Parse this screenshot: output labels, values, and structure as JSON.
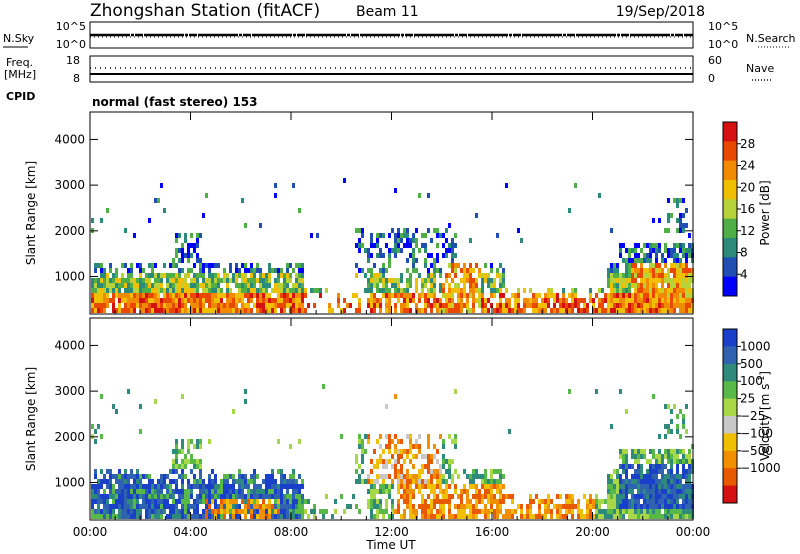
{
  "header": {
    "station": "Zhongshan Station (fitACF)",
    "beam": "Beam 11",
    "date": "19/Sep/2018"
  },
  "noise_panel": {
    "left_label": "N.Sky",
    "right_label": "N.Search",
    "left_ticks": [
      "10^5",
      "10^0"
    ],
    "right_ticks": [
      "10^5",
      "10^0"
    ]
  },
  "freq_panel": {
    "left_label_1": "Freq.",
    "left_label_2": "[MHz]",
    "right_label": "Nave",
    "left_ticks": [
      "18",
      "8"
    ],
    "right_ticks": [
      "60",
      "0"
    ]
  },
  "cpid": {
    "label": "CPID",
    "value": "normal (fast stereo) 153"
  },
  "chart_data": [
    {
      "type": "heatmap",
      "name": "power",
      "ylabel": "Slant Range [km]",
      "y_ticks": [
        "1000",
        "2000",
        "3000",
        "4000"
      ],
      "y_values": [
        1000,
        2000,
        3000,
        4000
      ],
      "ylim": [
        180,
        4600
      ],
      "colorbar_label": "Power [dB]",
      "colorbar_ticks": [
        "4",
        "8",
        "12",
        "16",
        "20",
        "24",
        "28"
      ],
      "colorbar_values": [
        4,
        8,
        12,
        16,
        20,
        24,
        28
      ],
      "colorbar_range": [
        0,
        32
      ],
      "colorbar_colors": [
        "#0000ff",
        "#1f4fb2",
        "#2c8a7b",
        "#4fae45",
        "#b8d23a",
        "#f0c000",
        "#f28a00",
        "#e84800",
        "#d41010"
      ]
    },
    {
      "type": "heatmap",
      "name": "velocity",
      "ylabel": "Slant Range [km]",
      "y_ticks": [
        "1000",
        "2000",
        "3000",
        "4000"
      ],
      "y_values": [
        1000,
        2000,
        3000,
        4000
      ],
      "ylim": [
        180,
        4600
      ],
      "colorbar_label": "Velocity [m s",
      "colorbar_label_sup": "-1",
      "colorbar_label_end": "]",
      "colorbar_ticks": [
        "1000",
        "500",
        "100",
        "25",
        "−25",
        "−100",
        "−500",
        "−1000"
      ],
      "colorbar_colors": [
        "#1a3fc8",
        "#2f63b0",
        "#2e8a7a",
        "#58b848",
        "#a8d848",
        "#c8c8c8",
        "#f0c000",
        "#f09000",
        "#e85a00",
        "#d41010"
      ]
    }
  ],
  "x_axis": {
    "label": "Time UT",
    "ticks": [
      "00:00",
      "04:00",
      "08:00",
      "12:00",
      "16:00",
      "20:00",
      "00:00"
    ],
    "hours": [
      0,
      4,
      8,
      12,
      16,
      20,
      24
    ],
    "xlim": [
      0,
      24
    ]
  }
}
